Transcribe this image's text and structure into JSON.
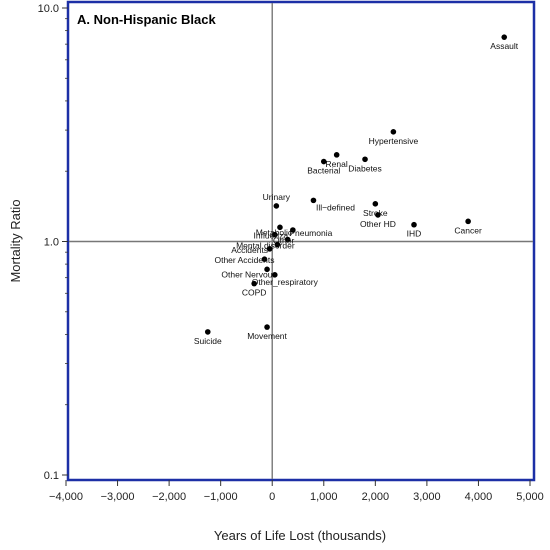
{
  "chart_data": {
    "type": "scatter",
    "title": "A. Non-Hispanic Black",
    "xlabel": "Years of Life Lost (thousands)",
    "ylabel": "Mortality Ratio",
    "xlim": [
      -4000,
      5000
    ],
    "ylim": [
      0.1,
      10.0
    ],
    "yscale": "log",
    "x_ticks": [
      -4000,
      -3000,
      -2000,
      -1000,
      0,
      1000,
      2000,
      3000,
      4000,
      5000
    ],
    "x_tick_labels": [
      "−4,000",
      "−3,000",
      "−2,000",
      "−1,000",
      "0",
      "1,000",
      "2,000",
      "3,000",
      "4,000",
      "5,000"
    ],
    "y_ticks": [
      0.1,
      1.0,
      10.0
    ],
    "y_tick_labels": [
      "0.1",
      "1.0",
      "10.0"
    ],
    "reference_lines": {
      "x": 0,
      "y": 1.0
    },
    "grid": false,
    "points": [
      {
        "label": "Assault",
        "x": 4500,
        "y": 7.5
      },
      {
        "label": "Hypertensive",
        "x": 2350,
        "y": 2.95
      },
      {
        "label": "Renal",
        "x": 1250,
        "y": 2.35
      },
      {
        "label": "Bacterial",
        "x": 1000,
        "y": 2.2
      },
      {
        "label": "Diabetes",
        "x": 1800,
        "y": 2.25
      },
      {
        "label": "Ill−defined",
        "x": 800,
        "y": 1.5
      },
      {
        "label": "Urinary",
        "x": 80,
        "y": 1.42
      },
      {
        "label": "Stroke",
        "x": 2000,
        "y": 1.45
      },
      {
        "label": "Other HD",
        "x": 2050,
        "y": 1.3
      },
      {
        "label": "IHD",
        "x": 2750,
        "y": 1.18
      },
      {
        "label": "Cancer",
        "x": 3800,
        "y": 1.22
      },
      {
        "label": "Metabolic",
        "x": 150,
        "y": 1.15
      },
      {
        "label": "Pneumonia",
        "x": 400,
        "y": 1.12
      },
      {
        "label": "Influenza",
        "x": 50,
        "y": 1.07
      },
      {
        "label": "Other",
        "x": 300,
        "y": 1.02
      },
      {
        "label": "Mental disorder",
        "x": 100,
        "y": 0.97
      },
      {
        "label": "Accidents",
        "x": -50,
        "y": 0.93
      },
      {
        "label": "Other Accidents",
        "x": -150,
        "y": 0.84
      },
      {
        "label": "Other Nervous",
        "x": -100,
        "y": 0.76
      },
      {
        "label": "Other_respiratory",
        "x": 50,
        "y": 0.72
      },
      {
        "label": "COPD",
        "x": -350,
        "y": 0.66
      },
      {
        "label": "Movement",
        "x": -100,
        "y": 0.43
      },
      {
        "label": "Suicide",
        "x": -1250,
        "y": 0.41
      }
    ]
  }
}
